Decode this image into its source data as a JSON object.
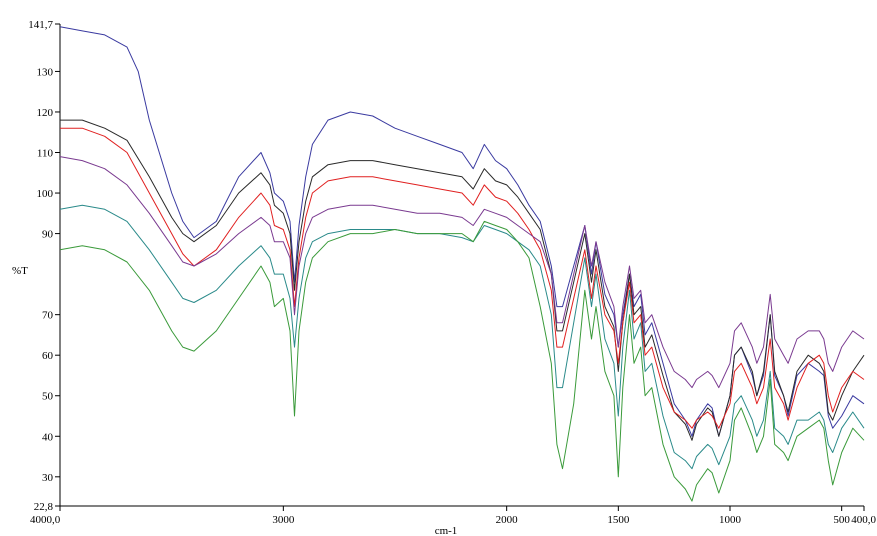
{
  "chart_data": {
    "type": "line",
    "title": "",
    "xlabel": "cm-1",
    "ylabel": "%T",
    "xlim": [
      4000,
      400
    ],
    "ylim": [
      22.8,
      141.7
    ],
    "x_reversed": true,
    "grid": false,
    "x_tick_labels": [
      {
        "value": 4000,
        "label": "4000,0"
      },
      {
        "value": 3000,
        "label": "3000"
      },
      {
        "value": 2000,
        "label": "2000"
      },
      {
        "value": 1500,
        "label": "1500"
      },
      {
        "value": 1000,
        "label": "1000"
      },
      {
        "value": 500,
        "label": "500"
      },
      {
        "value": 400,
        "label": "400,0"
      }
    ],
    "y_tick_labels": [
      {
        "value": 141.7,
        "label": "141,7"
      },
      {
        "value": 130,
        "label": "130"
      },
      {
        "value": 120,
        "label": "120"
      },
      {
        "value": 110,
        "label": "110"
      },
      {
        "value": 100,
        "label": "100"
      },
      {
        "value": 90,
        "label": "90"
      },
      {
        "value": 70,
        "label": "70"
      },
      {
        "value": 60,
        "label": "60"
      },
      {
        "value": 50,
        "label": "50"
      },
      {
        "value": 40,
        "label": "40"
      },
      {
        "value": 30,
        "label": "30"
      },
      {
        "value": 22.8,
        "label": "22,8"
      }
    ],
    "series": [
      {
        "color": "#3a3aa0",
        "x": [
          4000,
          3900,
          3800,
          3700,
          3650,
          3600,
          3500,
          3450,
          3400,
          3300,
          3200,
          3100,
          3060,
          3040,
          3000,
          2970,
          2950,
          2930,
          2900,
          2870,
          2800,
          2700,
          2600,
          2500,
          2400,
          2300,
          2200,
          2150,
          2100,
          2050,
          2000,
          1950,
          1900,
          1850,
          1800,
          1775,
          1750,
          1700,
          1650,
          1620,
          1600,
          1560,
          1520,
          1500,
          1480,
          1450,
          1430,
          1400,
          1380,
          1350,
          1300,
          1250,
          1200,
          1170,
          1150,
          1100,
          1080,
          1050,
          1000,
          980,
          950,
          900,
          880,
          850,
          820,
          800,
          760,
          740,
          700,
          650,
          600,
          580,
          560,
          540,
          500,
          450,
          400
        ],
        "y": [
          141,
          140,
          139,
          136,
          130,
          118,
          100,
          93,
          89,
          93,
          104,
          110,
          105,
          100,
          98,
          93,
          78,
          92,
          104,
          112,
          118,
          120,
          119,
          116,
          114,
          112,
          110,
          106,
          112,
          108,
          106,
          102,
          97,
          93,
          82,
          72,
          72,
          82,
          92,
          80,
          88,
          75,
          70,
          62,
          70,
          80,
          72,
          75,
          65,
          68,
          58,
          48,
          44,
          40,
          44,
          48,
          47,
          40,
          50,
          60,
          62,
          55,
          50,
          55,
          70,
          55,
          50,
          45,
          55,
          58,
          56,
          55,
          45,
          42,
          45,
          50,
          48
        ]
      },
      {
        "color": "#2a2a2a",
        "x": [
          4000,
          3900,
          3800,
          3700,
          3600,
          3500,
          3450,
          3400,
          3300,
          3200,
          3100,
          3060,
          3040,
          3000,
          2970,
          2950,
          2930,
          2900,
          2870,
          2800,
          2700,
          2600,
          2500,
          2400,
          2300,
          2200,
          2150,
          2100,
          2050,
          2000,
          1950,
          1900,
          1850,
          1800,
          1775,
          1750,
          1700,
          1650,
          1620,
          1600,
          1560,
          1520,
          1500,
          1480,
          1450,
          1430,
          1400,
          1380,
          1350,
          1300,
          1250,
          1200,
          1170,
          1150,
          1100,
          1080,
          1050,
          1000,
          980,
          950,
          900,
          880,
          850,
          820,
          800,
          760,
          740,
          700,
          650,
          600,
          580,
          560,
          540,
          500,
          450,
          400
        ],
        "y": [
          118,
          118,
          116,
          113,
          104,
          94,
          90,
          88,
          92,
          100,
          105,
          102,
          97,
          95,
          90,
          76,
          88,
          98,
          104,
          107,
          108,
          108,
          107,
          106,
          105,
          104,
          101,
          106,
          103,
          102,
          99,
          95,
          91,
          80,
          66,
          66,
          78,
          90,
          78,
          86,
          72,
          67,
          56,
          68,
          80,
          70,
          72,
          62,
          65,
          55,
          46,
          43,
          39,
          43,
          47,
          46,
          40,
          50,
          60,
          62,
          56,
          50,
          56,
          70,
          56,
          50,
          46,
          56,
          60,
          58,
          56,
          46,
          44,
          50,
          56,
          60
        ]
      },
      {
        "color": "#e02020",
        "x": [
          4000,
          3900,
          3800,
          3700,
          3600,
          3500,
          3450,
          3400,
          3300,
          3200,
          3100,
          3060,
          3040,
          3000,
          2970,
          2950,
          2930,
          2900,
          2870,
          2800,
          2700,
          2600,
          2500,
          2400,
          2300,
          2200,
          2150,
          2100,
          2050,
          2000,
          1950,
          1900,
          1850,
          1800,
          1775,
          1750,
          1700,
          1650,
          1620,
          1600,
          1560,
          1520,
          1500,
          1480,
          1450,
          1430,
          1400,
          1380,
          1350,
          1300,
          1250,
          1200,
          1170,
          1150,
          1100,
          1080,
          1050,
          1000,
          980,
          950,
          900,
          880,
          850,
          820,
          800,
          760,
          740,
          700,
          650,
          600,
          580,
          560,
          540,
          500,
          450,
          400
        ],
        "y": [
          116,
          116,
          114,
          110,
          100,
          90,
          85,
          82,
          86,
          94,
          100,
          97,
          92,
          91,
          86,
          72,
          84,
          94,
          100,
          103,
          104,
          104,
          103,
          102,
          101,
          100,
          97,
          102,
          99,
          98,
          95,
          91,
          86,
          76,
          62,
          62,
          74,
          86,
          74,
          82,
          70,
          66,
          58,
          68,
          78,
          68,
          70,
          60,
          62,
          52,
          46,
          44,
          42,
          44,
          46,
          45,
          42,
          48,
          56,
          58,
          52,
          48,
          52,
          64,
          52,
          48,
          44,
          52,
          58,
          60,
          58,
          50,
          46,
          52,
          56,
          54
        ]
      },
      {
        "color": "#7a3a90",
        "x": [
          4000,
          3900,
          3800,
          3700,
          3600,
          3500,
          3450,
          3400,
          3300,
          3200,
          3100,
          3060,
          3040,
          3000,
          2970,
          2950,
          2930,
          2900,
          2870,
          2800,
          2700,
          2600,
          2500,
          2400,
          2300,
          2200,
          2150,
          2100,
          2050,
          2000,
          1950,
          1900,
          1850,
          1800,
          1775,
          1750,
          1700,
          1650,
          1620,
          1600,
          1560,
          1520,
          1500,
          1480,
          1450,
          1430,
          1400,
          1380,
          1350,
          1300,
          1250,
          1200,
          1170,
          1150,
          1100,
          1080,
          1050,
          1000,
          980,
          950,
          900,
          880,
          850,
          820,
          800,
          760,
          740,
          700,
          650,
          600,
          580,
          560,
          540,
          500,
          450,
          400
        ],
        "y": [
          109,
          108,
          106,
          102,
          95,
          87,
          83,
          82,
          85,
          90,
          94,
          92,
          88,
          88,
          84,
          70,
          82,
          90,
          94,
          96,
          97,
          97,
          96,
          95,
          95,
          94,
          92,
          96,
          95,
          94,
          92,
          90,
          88,
          80,
          68,
          68,
          80,
          92,
          82,
          88,
          78,
          72,
          62,
          72,
          82,
          74,
          76,
          68,
          70,
          62,
          56,
          54,
          52,
          54,
          56,
          55,
          52,
          58,
          66,
          68,
          62,
          58,
          62,
          75,
          64,
          60,
          58,
          64,
          66,
          66,
          64,
          58,
          56,
          62,
          66,
          64
        ]
      },
      {
        "color": "#2a8a8a",
        "x": [
          4000,
          3900,
          3800,
          3700,
          3600,
          3500,
          3450,
          3400,
          3300,
          3200,
          3100,
          3060,
          3040,
          3000,
          2970,
          2950,
          2930,
          2900,
          2870,
          2800,
          2700,
          2600,
          2500,
          2400,
          2300,
          2200,
          2150,
          2100,
          2050,
          2000,
          1950,
          1900,
          1850,
          1800,
          1775,
          1750,
          1700,
          1650,
          1620,
          1600,
          1560,
          1520,
          1500,
          1480,
          1450,
          1430,
          1400,
          1380,
          1350,
          1300,
          1250,
          1200,
          1170,
          1150,
          1100,
          1080,
          1050,
          1000,
          980,
          950,
          900,
          880,
          850,
          820,
          800,
          760,
          740,
          700,
          650,
          600,
          580,
          560,
          540,
          500,
          450,
          400
        ],
        "y": [
          96,
          97,
          96,
          93,
          86,
          78,
          74,
          73,
          76,
          82,
          87,
          84,
          80,
          80,
          74,
          62,
          74,
          84,
          88,
          90,
          91,
          91,
          91,
          90,
          90,
          89,
          88,
          92,
          91,
          90,
          88,
          86,
          82,
          70,
          52,
          52,
          68,
          84,
          72,
          80,
          64,
          58,
          45,
          62,
          76,
          64,
          68,
          56,
          58,
          45,
          36,
          34,
          32,
          35,
          38,
          37,
          33,
          40,
          48,
          50,
          44,
          40,
          44,
          56,
          42,
          40,
          38,
          44,
          44,
          46,
          44,
          38,
          36,
          42,
          46,
          42
        ]
      },
      {
        "color": "#3a9a3a",
        "x": [
          4000,
          3900,
          3800,
          3700,
          3600,
          3500,
          3450,
          3400,
          3300,
          3200,
          3100,
          3060,
          3040,
          3000,
          2970,
          2950,
          2930,
          2900,
          2870,
          2800,
          2700,
          2600,
          2500,
          2400,
          2300,
          2200,
          2150,
          2100,
          2050,
          2000,
          1950,
          1900,
          1850,
          1800,
          1775,
          1750,
          1700,
          1650,
          1620,
          1600,
          1560,
          1520,
          1500,
          1480,
          1450,
          1430,
          1400,
          1380,
          1350,
          1300,
          1250,
          1200,
          1170,
          1150,
          1100,
          1080,
          1050,
          1000,
          980,
          950,
          900,
          880,
          850,
          820,
          800,
          760,
          740,
          700,
          650,
          600,
          580,
          560,
          540,
          500,
          450,
          400
        ],
        "y": [
          86,
          87,
          86,
          83,
          76,
          66,
          62,
          61,
          66,
          74,
          82,
          78,
          72,
          74,
          66,
          45,
          66,
          78,
          84,
          88,
          90,
          90,
          91,
          90,
          90,
          90,
          88,
          93,
          92,
          91,
          88,
          84,
          72,
          58,
          38,
          32,
          48,
          76,
          64,
          72,
          56,
          50,
          30,
          52,
          70,
          58,
          62,
          50,
          52,
          38,
          30,
          27,
          24,
          28,
          32,
          31,
          26,
          34,
          44,
          47,
          40,
          36,
          40,
          54,
          38,
          36,
          34,
          40,
          42,
          44,
          42,
          34,
          28,
          36,
          42,
          39
        ]
      }
    ]
  }
}
